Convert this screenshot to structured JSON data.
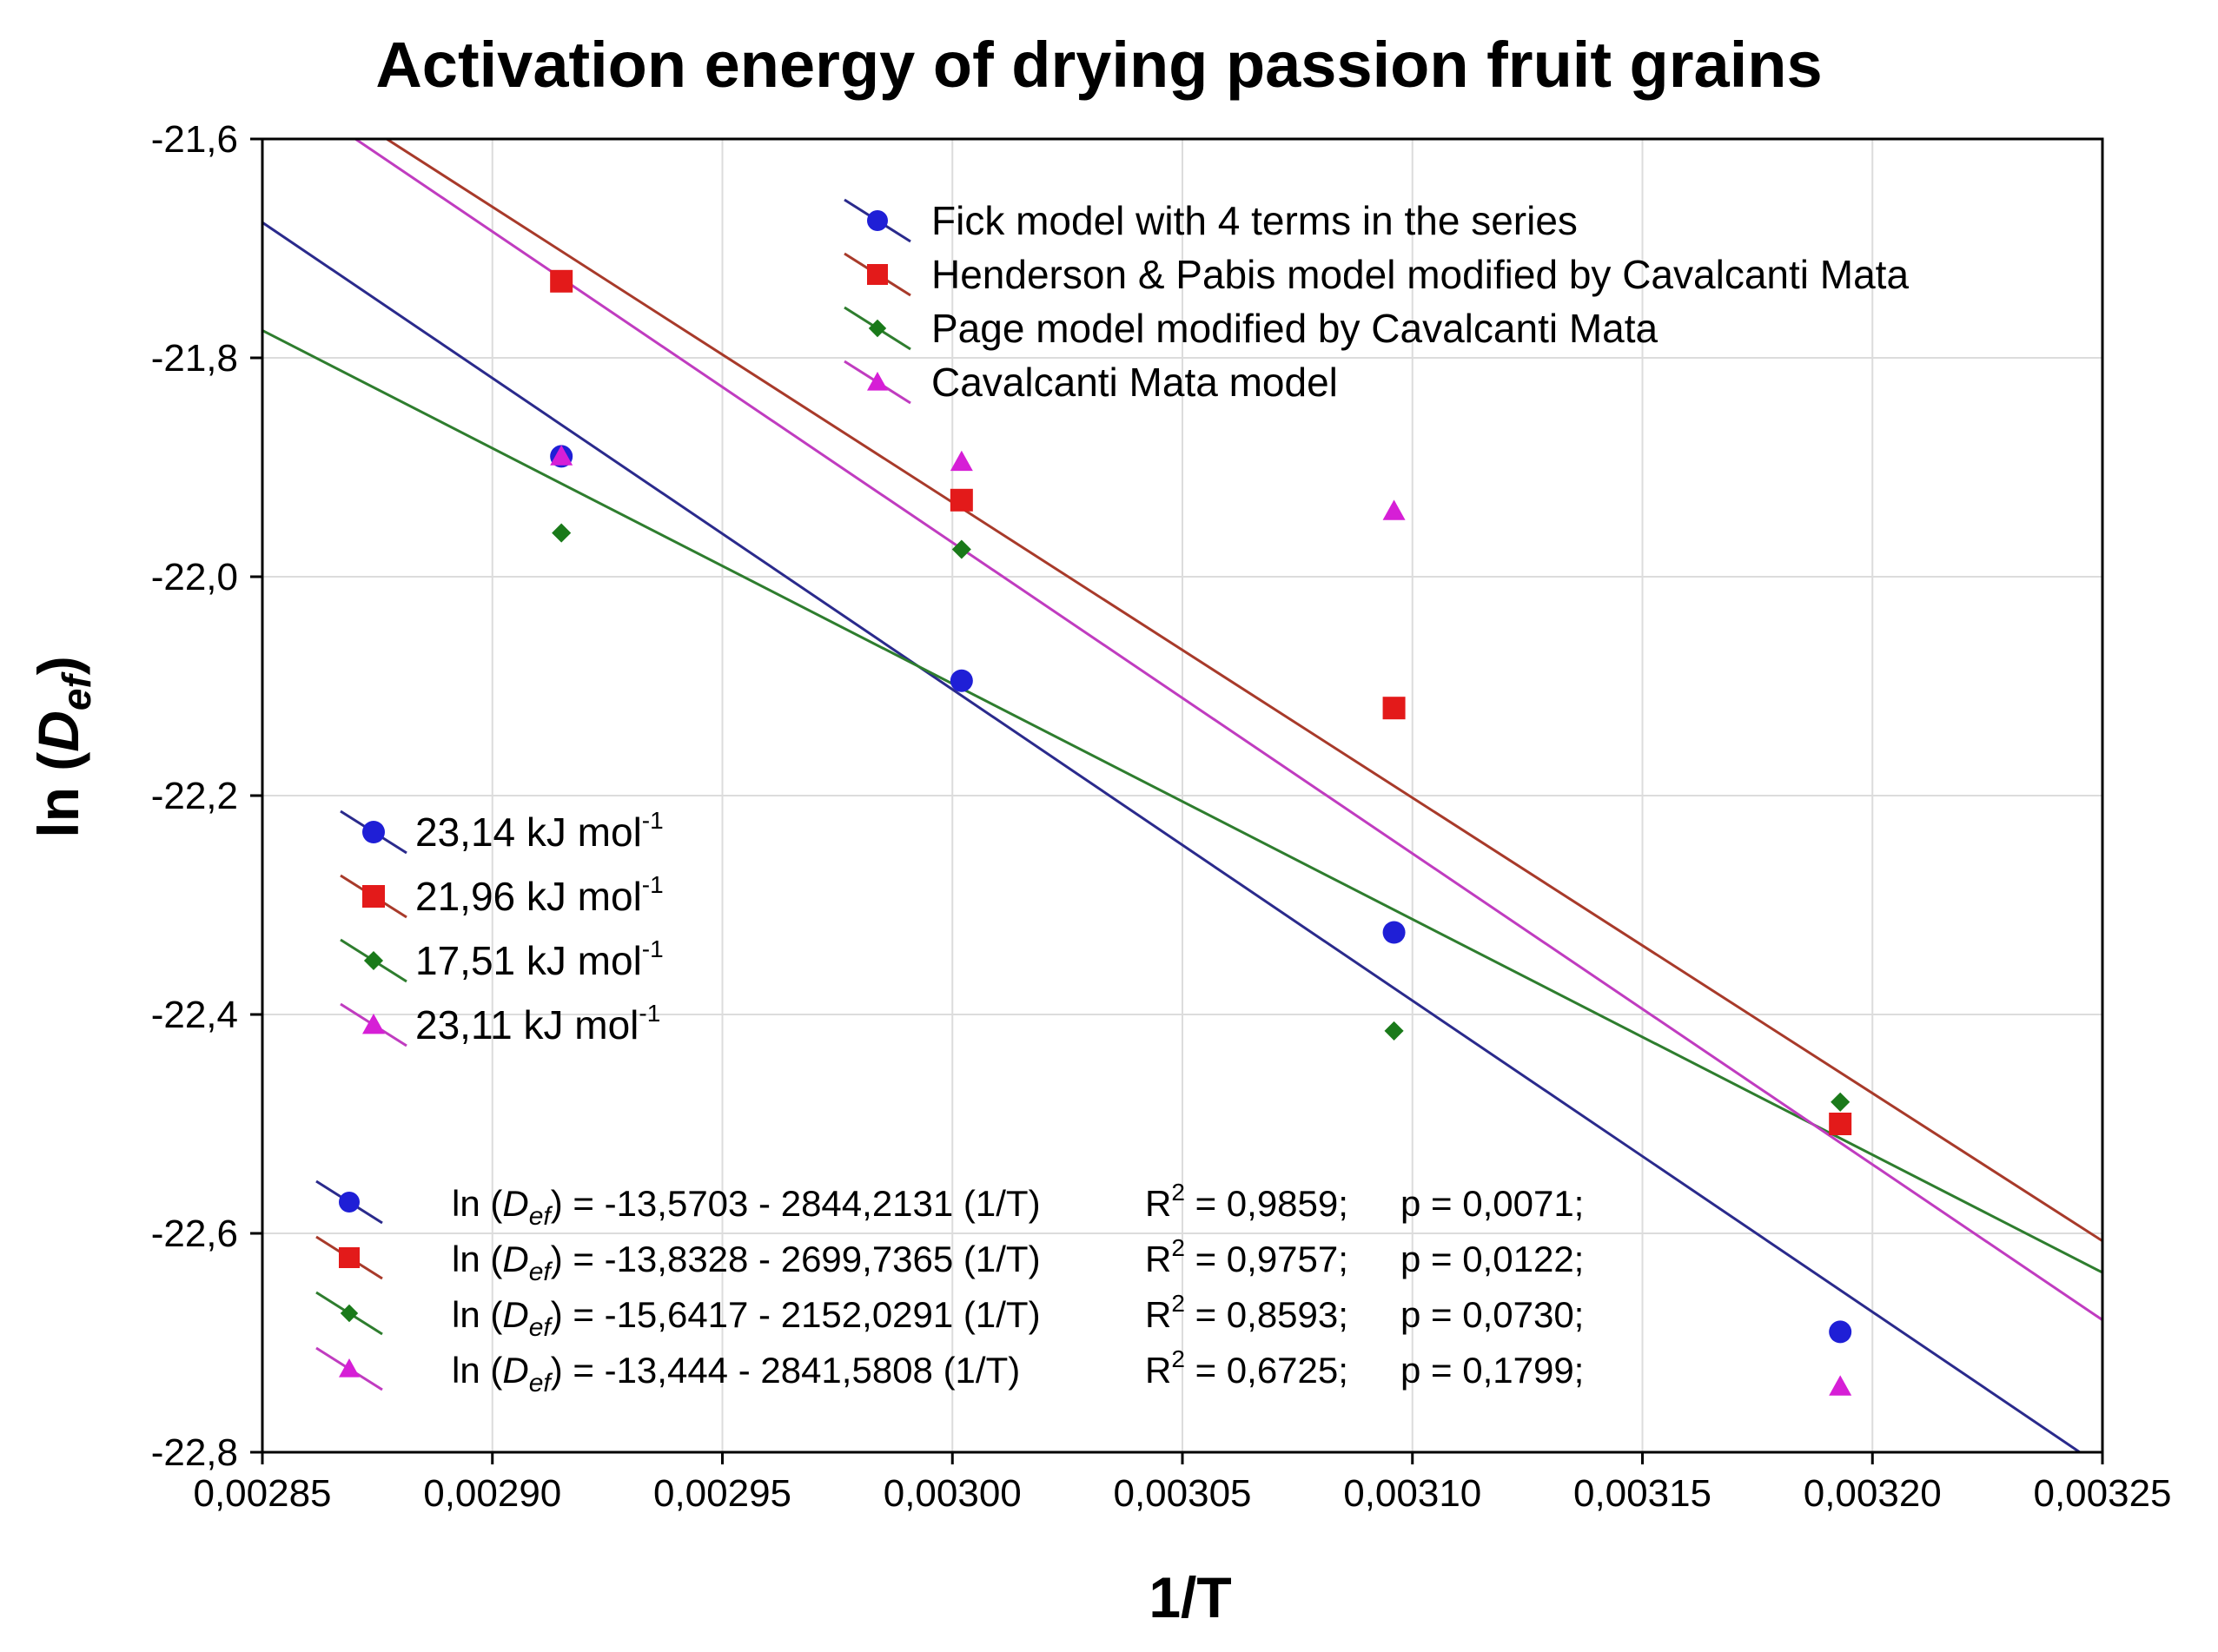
{
  "chart_data": {
    "type": "scatter",
    "title": "Activation energy of drying passion fruit grains",
    "xlabel": "1/T",
    "ylabel_prefix": "ln (",
    "ylabel_var": "D",
    "ylabel_sub": "ef",
    "ylabel_suffix": ")",
    "xlim": [
      0.00285,
      0.00325
    ],
    "ylim": [
      -22.8,
      -21.6
    ],
    "x_ticks": [
      0.00285,
      0.0029,
      0.00295,
      0.003,
      0.00305,
      0.0031,
      0.00315,
      0.0032,
      0.00325
    ],
    "x_tick_labels": [
      "0,00285",
      "0,00290",
      "0,00295",
      "0,00300",
      "0,00305",
      "0,00310",
      "0,00315",
      "0,00320",
      "0,00325"
    ],
    "y_ticks": [
      -21.6,
      -21.8,
      -22.0,
      -22.2,
      -22.4,
      -22.6,
      -22.8
    ],
    "y_tick_labels": [
      "-21,6",
      "-21,8",
      "-22,0",
      "-22,2",
      "-22,4",
      "-22,6",
      "-22,8"
    ],
    "grid": true,
    "series": [
      {
        "name": "Fick model with 4 terms in the series",
        "marker": "circle",
        "color": "#1f1fd6",
        "line_color": "#2a2a8c",
        "x": [
          0.002915,
          0.003002,
          0.003096,
          0.003193
        ],
        "y": [
          -21.89,
          -22.095,
          -22.325,
          -22.69
        ],
        "fit": {
          "intercept": -13.5703,
          "slope": -2844.2131
        },
        "energy": "23,14 kJ mol",
        "energy_sup": "-1",
        "eq_left": "ln (",
        "eq_var": "D",
        "eq_sub": "ef",
        "eq_mid": ") = -13,5703 - 2844,2131 (1/T)",
        "eq_r2": "R",
        "eq_r2_sup": "2",
        "eq_r2_val": " = 0,9859;",
        "eq_p": "p = 0,0071;"
      },
      {
        "name": "Henderson & Pabis model modified by Cavalcanti Mata",
        "marker": "square",
        "color": "#e31a1a",
        "line_color": "#a83a2a",
        "x": [
          0.002915,
          0.003002,
          0.003096,
          0.003193
        ],
        "y": [
          -21.73,
          -21.93,
          -22.12,
          -22.5
        ],
        "fit": {
          "intercept": -13.8328,
          "slope": -2699.7365
        },
        "energy": "21,96 kJ mol",
        "energy_sup": "-1",
        "eq_left": "ln (",
        "eq_var": "D",
        "eq_sub": "ef",
        "eq_mid": ") = -13,8328 - 2699,7365 (1/T)",
        "eq_r2": "R",
        "eq_r2_sup": "2",
        "eq_r2_val": " = 0,9757;",
        "eq_p": "p = 0,0122;"
      },
      {
        "name": "Page model modified by Cavalcanti Mata",
        "marker": "diamond",
        "color": "#1a7a1a",
        "line_color": "#2e7d2e",
        "x": [
          0.002915,
          0.003002,
          0.003096,
          0.003193
        ],
        "y": [
          -21.96,
          -21.975,
          -22.415,
          -22.48
        ],
        "fit": {
          "intercept": -15.6417,
          "slope": -2152.0291
        },
        "energy": "17,51 kJ mol",
        "energy_sup": "-1",
        "eq_left": "ln (",
        "eq_var": "D",
        "eq_sub": "ef",
        "eq_mid": ") = -15,6417 - 2152,0291 (1/T)",
        "eq_r2": "R",
        "eq_r2_sup": "2",
        "eq_r2_val": " = 0,8593;",
        "eq_p": "p = 0,0730;"
      },
      {
        "name": "Cavalcanti Mata model",
        "marker": "triangle",
        "color": "#d61fd6",
        "line_color": "#c03cc0",
        "x": [
          0.002915,
          0.003002,
          0.003096,
          0.003193
        ],
        "y": [
          -21.89,
          -21.895,
          -21.94,
          -22.74
        ],
        "fit": {
          "intercept": -13.444,
          "slope": -2841.5808
        },
        "energy": "23,11 kJ mol",
        "energy_sup": "-1",
        "eq_left": "ln (",
        "eq_var": "D",
        "eq_sub": "ef",
        "eq_mid": ") = -13,444 - 2841,5808 (1/T)",
        "eq_r2": "R",
        "eq_r2_sup": "2",
        "eq_r2_val": " = 0,6725;",
        "eq_p": "p = 0,1799;"
      }
    ]
  }
}
